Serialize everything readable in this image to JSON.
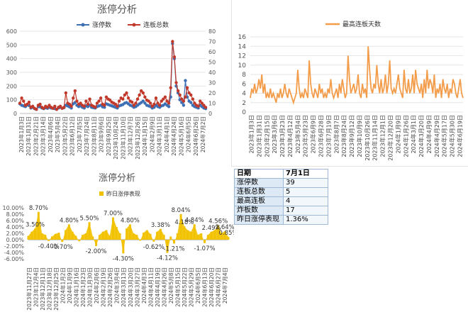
{
  "chart_data": [
    {
      "type": "line",
      "title": "涨停分析",
      "series": [
        {
          "name": "涨停数",
          "axis": "left",
          "color": "#3d6fb5",
          "values": [
            70,
            60,
            55,
            50,
            62,
            58,
            40,
            45,
            35,
            30,
            50,
            48,
            40,
            35,
            42,
            38,
            45,
            40,
            38,
            35,
            30,
            40,
            45,
            38,
            42,
            60,
            55,
            48,
            40,
            70,
            80,
            60,
            50,
            55,
            45,
            40,
            55,
            50,
            60,
            45,
            42,
            40,
            50,
            55,
            60,
            48,
            45,
            70,
            65,
            60,
            55,
            50,
            45,
            40,
            55,
            60,
            65,
            75,
            80,
            70,
            60,
            55,
            45,
            50,
            60,
            70,
            80,
            90,
            75,
            60,
            55,
            50,
            40,
            45,
            60,
            50,
            45,
            55,
            60,
            70,
            60,
            50,
            120,
            510,
            400,
            200,
            150,
            100,
            80,
            60,
            240,
            120,
            90,
            80,
            60,
            50,
            45,
            40,
            60,
            50,
            40,
            35
          ]
        },
        {
          "name": "连板总数",
          "axis": "right",
          "color": "#c0392b",
          "values": [
            10,
            15,
            12,
            8,
            9,
            11,
            6,
            7,
            5,
            4,
            8,
            9,
            6,
            5,
            7,
            6,
            8,
            6,
            5,
            7,
            4,
            6,
            7,
            5,
            6,
            20,
            10,
            9,
            7,
            15,
            22,
            12,
            9,
            10,
            8,
            7,
            12,
            9,
            14,
            8,
            7,
            6,
            10,
            12,
            15,
            9,
            8,
            16,
            14,
            13,
            11,
            10,
            9,
            7,
            12,
            15,
            14,
            18,
            20,
            15,
            12,
            11,
            8,
            10,
            14,
            18,
            22,
            20,
            16,
            13,
            12,
            10,
            7,
            9,
            15,
            10,
            8,
            12,
            14,
            16,
            12,
            10,
            25,
            70,
            55,
            30,
            22,
            18,
            14,
            12,
            16,
            25,
            20,
            18,
            14,
            10,
            8,
            7,
            12,
            10,
            8,
            6
          ]
        }
      ],
      "x_tick_labels": [
        "2023年1月3日",
        "2023年1月31日",
        "2023年2月21日",
        "2023年3月14日",
        "2023年4月6日",
        "2023年5月4日",
        "2023年5月22日",
        "2023年6月12日",
        "2023年7月5日",
        "2023年7月24日",
        "2023年8月11日",
        "2023年9月6日",
        "2023年9月25日",
        "2023年10月24日",
        "2023年11月10日",
        "2023年12月7日",
        "2023年12月26日",
        "2024年1月15日",
        "2024年2月9日",
        "2024年3月11日",
        "2024年4月1日",
        "2024年4月24日",
        "2024年5月16日",
        "2024年6月5日",
        "2024年6月26日",
        "2024年7月2日"
      ],
      "y_left_ticks": [
        "0",
        "100",
        "200",
        "300",
        "400",
        "500",
        "600"
      ],
      "y_right_ticks": [
        "0",
        "10",
        "20",
        "30",
        "40",
        "50",
        "60",
        "70",
        "80"
      ],
      "ylim_left": [
        0,
        600
      ],
      "ylim_right": [
        0,
        80
      ],
      "legend": "top",
      "grid": true
    },
    {
      "type": "line",
      "series": [
        {
          "name": "最高连板天数",
          "color": "#f39c4a",
          "values": [
            3,
            5,
            4,
            6,
            4,
            5,
            7,
            5,
            8,
            4,
            6,
            3,
            4,
            3,
            5,
            3,
            4,
            3,
            2,
            4,
            3,
            5,
            3,
            4,
            6,
            4,
            3,
            5,
            4,
            3,
            2,
            3,
            4,
            9,
            5,
            3,
            4,
            3,
            5,
            4,
            3,
            11,
            6,
            4,
            3,
            5,
            4,
            3,
            6,
            4,
            5,
            3,
            4,
            3,
            5,
            4,
            7,
            4,
            3,
            4,
            5,
            3,
            6,
            4,
            7,
            5,
            3,
            4,
            12,
            7,
            4,
            5,
            6,
            4,
            5,
            8,
            4,
            3,
            6,
            4,
            5,
            3,
            14,
            9,
            5,
            4,
            6,
            5,
            10,
            6,
            4,
            7,
            4,
            5,
            8,
            4,
            6,
            11,
            5,
            4,
            5,
            4,
            6,
            8,
            5,
            4,
            3,
            9,
            5,
            4,
            7,
            4,
            5,
            8,
            4,
            9,
            6,
            5,
            4,
            6,
            3,
            7,
            4,
            9,
            5,
            7,
            6,
            4,
            8,
            3,
            5,
            4,
            6,
            3,
            7,
            5,
            4,
            6,
            3,
            5,
            4,
            7,
            6,
            4,
            3,
            5,
            7,
            4,
            3
          ]
        }
      ],
      "x_tick_labels": [
        "2023年1月3日",
        "2023年1月31日",
        "2023年2月15日",
        "2023年3月6日",
        "2023年3月23日",
        "2023年4月12日",
        "2023年5月4日",
        "2023年5月23日",
        "2023年6月9日",
        "2023年6月28日",
        "2023年7月19日",
        "2023年8月7日",
        "2023年8月24日",
        "2023年9月12日",
        "2023年10月9日",
        "2023年10月26日",
        "2023年11月14日",
        "2023年12月1日",
        "2023年12月20日",
        "2024年1月9日",
        "2024年1月26日",
        "2024年3月1日",
        "2024年3月20日",
        "2024年4月9日",
        "2024年4月29日",
        "2024年5月17日",
        "2024年5月30日",
        "2024年6月19日"
      ],
      "y_ticks": [
        "0",
        "2",
        "4",
        "6",
        "8",
        "10",
        "12",
        "14",
        "16"
      ],
      "ylim": [
        0,
        16
      ],
      "legend": "top",
      "grid": true
    },
    {
      "type": "bar",
      "title": "涨停分析",
      "series": [
        {
          "name": "昨日涨停表现",
          "color": "#f2c200",
          "values": [
            1.2,
            2.5,
            3.5,
            8.7,
            2.0,
            1.5,
            -0.4,
            1.0,
            1.8,
            2.2,
            -0.7,
            3.0,
            4.8,
            2.5,
            1.2,
            -0.5,
            1.5,
            2.0,
            5.5,
            1.0,
            -2.0,
            1.5,
            2.5,
            3.0,
            1.2,
            7.0,
            4.0,
            2.0,
            -4.3,
            3.5,
            4.8,
            2.0,
            1.5,
            -0.3,
            2.2,
            3.0,
            1.8,
            -0.62,
            2.5,
            3.38,
            1.5,
            -4.12,
            1.0,
            -1.21,
            2.0,
            8.04,
            4.18,
            3.0,
            2.5,
            4.84,
            1.5,
            2.0,
            -1.07,
            1.5,
            2.49,
            3.0,
            4.56,
            2.0,
            2.64,
            0.85
          ]
        }
      ],
      "data_labels": [
        {
          "text": "8.70%",
          "v": 8.7,
          "i": 3
        },
        {
          "text": "3.50%",
          "v": 3.5,
          "i": 2
        },
        {
          "text": "4.80%",
          "v": 4.8,
          "i": 12
        },
        {
          "text": "5.50%",
          "v": 5.5,
          "i": 18
        },
        {
          "text": "7.00%",
          "v": 7.0,
          "i": 25
        },
        {
          "text": "4.80%",
          "v": 4.8,
          "i": 30
        },
        {
          "text": "3.38%",
          "v": 3.38,
          "i": 39
        },
        {
          "text": "8.04%",
          "v": 8.04,
          "i": 45
        },
        {
          "text": "4.18%",
          "v": 4.18,
          "i": 46
        },
        {
          "text": "4.84%",
          "v": 4.84,
          "i": 49
        },
        {
          "text": "2.49%",
          "v": 2.49,
          "i": 54
        },
        {
          "text": "4.56%",
          "v": 4.56,
          "i": 56
        },
        {
          "text": "2.64%",
          "v": 2.64,
          "i": 58
        },
        {
          "text": "0.85%",
          "v": 0.85,
          "i": 59
        },
        {
          "text": "-0.40%",
          "v": -0.4,
          "i": 6
        },
        {
          "text": "-0.70%",
          "v": -0.7,
          "i": 10
        },
        {
          "text": "-2.00%",
          "v": -2.0,
          "i": 20
        },
        {
          "text": "-4.30%",
          "v": -4.3,
          "i": 28
        },
        {
          "text": "-0.62%",
          "v": -0.62,
          "i": 37
        },
        {
          "text": "-4.12%",
          "v": -4.12,
          "i": 41
        },
        {
          "text": "-1.21%",
          "v": -1.21,
          "i": 43
        },
        {
          "text": "-1.07%",
          "v": -1.07,
          "i": 52
        }
      ],
      "x_tick_labels": [
        "2023年11月27日",
        "2023年12月4日",
        "2023年12月11日",
        "2023年12月18日",
        "2023年12月25日",
        "2024年1月2日",
        "2024年1月9日",
        "2024年1月16日",
        "2024年1月23日",
        "2024年1月30日",
        "2024年2月6日",
        "2024年2月19日",
        "2024年2月26日",
        "2024年3月4日",
        "2024年3月13日",
        "2024年3月20日",
        "2024年3月27日",
        "2024年4月3日",
        "2024年4月11日",
        "2024年4月19日",
        "2024年4月26日",
        "2024年5月8日",
        "2024年5月15日",
        "2024年5月22日",
        "2024年5月29日",
        "2024年6月5日",
        "2024年6月13日",
        "2024年6月20日",
        "2024年6月27日",
        "2024年7月4日"
      ],
      "y_ticks": [
        "10.00%",
        "8.00%",
        "6.00%",
        "4.00%",
        "2.00%",
        "0.00%",
        "-2.00%",
        "-4.00%",
        "-6.00%"
      ],
      "ylim": [
        -6,
        10
      ],
      "legend": "top",
      "grid": false
    }
  ],
  "table": {
    "header": {
      "k": "日期",
      "v": "7月1日"
    },
    "rows": [
      {
        "k": "涨停数",
        "v": "39"
      },
      {
        "k": "连板总数",
        "v": "5"
      },
      {
        "k": "最高连板",
        "v": "4"
      },
      {
        "k": "炸板数",
        "v": "17"
      },
      {
        "k": "昨日涨停表现",
        "v": "1.36%"
      }
    ]
  }
}
